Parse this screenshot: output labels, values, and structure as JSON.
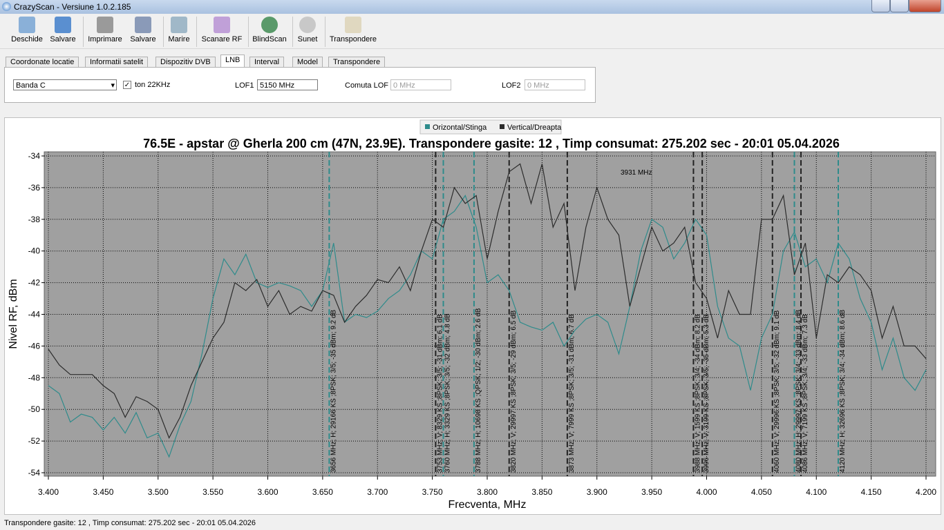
{
  "window": {
    "title": "CrazyScan - Versiune 1.0.2.185"
  },
  "toolbar": [
    "Deschide",
    "Salvare",
    "Imprimare",
    "Salvare",
    "Marire",
    "Scanare RF",
    "BlindScan",
    "Sunet",
    "Transpondere"
  ],
  "tabs": [
    "Coordonate locatie",
    "Informatii satelit",
    "Dispozitiv DVB",
    "LNB",
    "Interval",
    "Model",
    "Transpondere"
  ],
  "lnb": {
    "band": "Banda C",
    "tone_label": "ton 22KHz",
    "lof1_label": "LOF1",
    "lof1": "5150 MHz",
    "switch_label": "Comuta LOF",
    "switch": "0 MHz",
    "lof2_label": "LOF2",
    "lof2": "0 MHz"
  },
  "chart_data": {
    "type": "line",
    "title": "76.5E - apstar @ Gherla 200 cm (47N, 23.9E). Transpondere gasite: 12 , Timp consumat: 275.202 sec - 20:01 05.04.2026",
    "x_label": "Frecventa, MHz",
    "y_label": "Nivel RF, dBm",
    "grid": true,
    "xlim": [
      3.4,
      4.2
    ],
    "ylim": [
      -54,
      -34
    ],
    "xticks": [
      {
        "value": 3.4,
        "label": "3.400"
      },
      {
        "value": 3.45,
        "label": "3.450"
      },
      {
        "value": 3.5,
        "label": "3.500"
      },
      {
        "value": 3.55,
        "label": "3.550"
      },
      {
        "value": 3.6,
        "label": "3.600"
      },
      {
        "value": 3.65,
        "label": "3.650"
      },
      {
        "value": 3.7,
        "label": "3.700"
      },
      {
        "value": 3.75,
        "label": "3.750"
      },
      {
        "value": 3.8,
        "label": "3.800"
      },
      {
        "value": 3.85,
        "label": "3.850"
      },
      {
        "value": 3.9,
        "label": "3.900"
      },
      {
        "value": 3.95,
        "label": "3.950"
      },
      {
        "value": 4.0,
        "label": "4.000"
      },
      {
        "value": 4.05,
        "label": "4.050"
      },
      {
        "value": 4.1,
        "label": "4.100"
      },
      {
        "value": 4.15,
        "label": "4.150"
      },
      {
        "value": 4.2,
        "label": "4.200"
      }
    ],
    "yticks": [
      -34,
      -36,
      -38,
      -40,
      -42,
      -44,
      -46,
      -48,
      -50,
      -52,
      -54
    ],
    "x": [
      3.4,
      3.41,
      3.42,
      3.43,
      3.44,
      3.45,
      3.46,
      3.47,
      3.48,
      3.49,
      3.5,
      3.51,
      3.52,
      3.53,
      3.54,
      3.55,
      3.56,
      3.57,
      3.58,
      3.59,
      3.6,
      3.61,
      3.62,
      3.63,
      3.64,
      3.65,
      3.66,
      3.67,
      3.68,
      3.69,
      3.7,
      3.71,
      3.72,
      3.73,
      3.74,
      3.75,
      3.76,
      3.77,
      3.78,
      3.79,
      3.8,
      3.81,
      3.82,
      3.83,
      3.84,
      3.85,
      3.86,
      3.87,
      3.88,
      3.89,
      3.9,
      3.91,
      3.92,
      3.93,
      3.94,
      3.95,
      3.96,
      3.97,
      3.98,
      3.99,
      4.0,
      4.01,
      4.02,
      4.03,
      4.04,
      4.05,
      4.06,
      4.07,
      4.08,
      4.09,
      4.1,
      4.11,
      4.12,
      4.13,
      4.14,
      4.15,
      4.16,
      4.17,
      4.18,
      4.19,
      4.2
    ],
    "series": [
      {
        "name": "Orizontal/Stinga",
        "color": "#2e8b8b",
        "values": [
          -48.5,
          -49,
          -50.8,
          -50.3,
          -50.5,
          -51.3,
          -50.5,
          -51.5,
          -50.2,
          -51.8,
          -51.5,
          -53,
          -51,
          -49.5,
          -46.5,
          -43,
          -40.5,
          -41.5,
          -40.2,
          -42,
          -42.3,
          -42,
          -42.2,
          -42.5,
          -43.5,
          -42.5,
          -39.5,
          -44.5,
          -44,
          -44.2,
          -43.8,
          -43,
          -42.5,
          -41.5,
          -40,
          -40.5,
          -38,
          -37.5,
          -36.5,
          -38.5,
          -42,
          -41.5,
          -42.5,
          -44.5,
          -44.8,
          -45,
          -44.5,
          -46,
          -45,
          -44.3,
          -44,
          -44.5,
          -46.5,
          -43.5,
          -40,
          -38,
          -38.5,
          -40.5,
          -39.5,
          -38,
          -39,
          -43.5,
          -45.5,
          -46,
          -48.8,
          -45.5,
          -44,
          -40,
          -38.8,
          -41,
          -40.5,
          -42,
          -39.5,
          -40.5,
          -43,
          -44.5,
          -47.5,
          -45.5,
          -48,
          -48.8,
          -47.5
        ]
      },
      {
        "name": "Vertical/Dreapta",
        "color": "#2b2b2b",
        "values": [
          -46.2,
          -47.2,
          -47.8,
          -47.8,
          -47.8,
          -48.5,
          -49,
          -50.5,
          -49.2,
          -49.5,
          -50,
          -51.8,
          -50.5,
          -48.5,
          -47,
          -45.5,
          -44.5,
          -42,
          -42.5,
          -41.8,
          -43.5,
          -42.5,
          -44,
          -43.5,
          -43.8,
          -42.5,
          -42.8,
          -44.5,
          -43.5,
          -42.8,
          -41.8,
          -42,
          -41,
          -42.5,
          -40,
          -38,
          -38.5,
          -36,
          -37,
          -36.5,
          -40.5,
          -37.5,
          -35,
          -34.5,
          -37,
          -34.5,
          -38.5,
          -37,
          -42.5,
          -38.5,
          -36,
          -38,
          -39,
          -43.5,
          -41,
          -38.5,
          -40,
          -39.5,
          -38.5,
          -42,
          -43,
          -45.5,
          -42.5,
          -44,
          -44,
          -38,
          -38,
          -36.5,
          -41.5,
          -39.5,
          -45.5,
          -41.5,
          -42,
          -41,
          -41.5,
          -42.5,
          -45.5,
          -43.5,
          -46,
          -46,
          -46.8
        ]
      }
    ],
    "transponders": [
      {
        "x": 3.656,
        "color": "#2e8b8b",
        "label": "3656 MHz; H; 29166 KS ;8PSK; 3/5; -35 dBm; 9.2 dB"
      },
      {
        "x": 3.753,
        "color": "#222222",
        "label": "3753 MHz; V; 8329 KS ;8PSK; 3/5; -31 dBm; 6.1 dB"
      },
      {
        "x": 3.76,
        "color": "#2e8b8b",
        "label": "3760 MHz; H; 3329 KS ;8PSK; 3/5; -32 dBm; 4.8 dB"
      },
      {
        "x": 3.788,
        "color": "#2e8b8b",
        "label": "3788 MHz; H; 10698 KS ;QPSK; 1/2; -30 dBm; 2.6 dB"
      },
      {
        "x": 3.82,
        "color": "#222222",
        "label": "3820 MHz; V; 29997 KS ;8PSK; 3/5; -29 dBm; 6.5 dB"
      },
      {
        "x": 3.873,
        "color": "#222222",
        "label": "3873 MHz; V; 7999 KS ;8PSK; 3/5; -31 dBm; 6.7 dB"
      },
      {
        "x": 3.988,
        "color": "#222222",
        "label": "3988 MHz; V; 1599 KS ;8PSK; 3/4; -34 dBm; 8.2 dB"
      },
      {
        "x": 3.996,
        "color": "#222222",
        "label": "3996 MHz; V; 3199 KS ;8PSK; 3/5; -35 dBm; 5.3 dB"
      },
      {
        "x": 4.06,
        "color": "#222222",
        "label": "4060 MHz; V; 29996 KS ;8PSK; 3/5; -32 dBm; 9.1 dB"
      },
      {
        "x": 4.08,
        "color": "#2e8b8b",
        "label": "4080 MHz; H; 29997 KS ;8PSK; 3/4; -33 dBm; 8.4 dB"
      },
      {
        "x": 4.086,
        "color": "#222222",
        "label": "4086 MHz; V; 7199 KS ;8PSK; 3/4; -33 dBm; 7.3 dB"
      },
      {
        "x": 4.12,
        "color": "#2e8b8b",
        "label": "4120 MHz; H; 32696 KS ;8PSK; 3/4; -34 dBm; 8.6 dB"
      }
    ],
    "annotation": {
      "text": "3931 MHz",
      "x": 3.931,
      "y": -35
    }
  },
  "status": "Transpondere gasite: 12 , Timp consumat: 275.202 sec - 20:01 05.04.2026"
}
